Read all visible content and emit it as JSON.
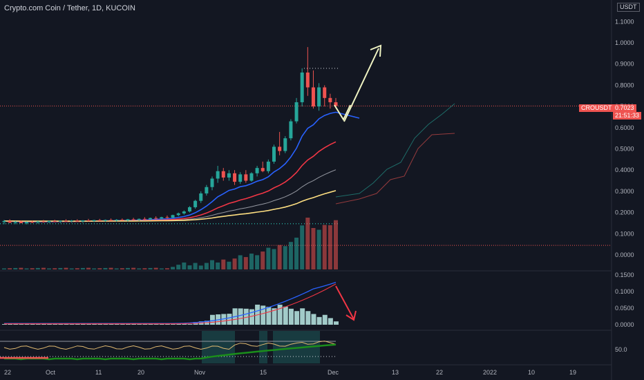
{
  "header": {
    "title": "Crypto.com Coin / Tether, 1D, KUCOIN",
    "unit": "USDT"
  },
  "price_tag": {
    "symbol": "CROUSDT",
    "price": "0.7023",
    "countdown": "21:51:33"
  },
  "colors": {
    "bg": "#131722",
    "up": "#26a69a",
    "down": "#ef5350",
    "grid": "#1e222d",
    "ema_fast": "#2962ff",
    "ema_mid": "#f23645",
    "ema_slow": "#9598a1",
    "ema_long": "#ffe082",
    "arrow_up": "#f0f4c3",
    "arrow_down": "#f23645"
  },
  "chart_data": [
    {
      "type": "candlestick",
      "panel": "price",
      "y_ticks": [
        "1.1000",
        "1.0000",
        "0.9000",
        "0.8000",
        "0.7000",
        "0.6000",
        "0.5000",
        "0.4000",
        "0.3000",
        "0.2000",
        "0.1000",
        "0.0000"
      ],
      "x_ticks": [
        "22",
        "Oct",
        "11",
        "20",
        "Nov",
        "15",
        "Dec",
        "13",
        "22",
        "2022",
        "10",
        "19"
      ],
      "ylim": [
        0,
        1.1
      ],
      "series": [
        {
          "name": "CROUSDT",
          "ohlc_desc": "flat ~0.15 through October, rally in November to high ~0.98, last close 0.7023"
        }
      ],
      "candles": [
        [
          0.155,
          0.165,
          0.145,
          0.16
        ],
        [
          0.16,
          0.168,
          0.15,
          0.152
        ],
        [
          0.152,
          0.16,
          0.145,
          0.157
        ],
        [
          0.157,
          0.163,
          0.15,
          0.15
        ],
        [
          0.15,
          0.158,
          0.144,
          0.156
        ],
        [
          0.156,
          0.162,
          0.15,
          0.153
        ],
        [
          0.153,
          0.16,
          0.147,
          0.158
        ],
        [
          0.158,
          0.165,
          0.152,
          0.155
        ],
        [
          0.155,
          0.162,
          0.15,
          0.16
        ],
        [
          0.16,
          0.166,
          0.154,
          0.157
        ],
        [
          0.157,
          0.163,
          0.151,
          0.161
        ],
        [
          0.161,
          0.168,
          0.156,
          0.159
        ],
        [
          0.159,
          0.165,
          0.153,
          0.162
        ],
        [
          0.162,
          0.168,
          0.157,
          0.158
        ],
        [
          0.158,
          0.164,
          0.152,
          0.163
        ],
        [
          0.163,
          0.17,
          0.158,
          0.16
        ],
        [
          0.16,
          0.166,
          0.155,
          0.164
        ],
        [
          0.164,
          0.17,
          0.159,
          0.161
        ],
        [
          0.161,
          0.167,
          0.156,
          0.165
        ],
        [
          0.165,
          0.172,
          0.16,
          0.162
        ],
        [
          0.162,
          0.169,
          0.157,
          0.166
        ],
        [
          0.166,
          0.172,
          0.161,
          0.163
        ],
        [
          0.163,
          0.17,
          0.158,
          0.168
        ],
        [
          0.168,
          0.175,
          0.162,
          0.165
        ],
        [
          0.165,
          0.172,
          0.16,
          0.17
        ],
        [
          0.17,
          0.178,
          0.165,
          0.168
        ],
        [
          0.168,
          0.176,
          0.163,
          0.174
        ],
        [
          0.174,
          0.182,
          0.168,
          0.172
        ],
        [
          0.172,
          0.18,
          0.166,
          0.178
        ],
        [
          0.178,
          0.186,
          0.172,
          0.176
        ],
        [
          0.176,
          0.19,
          0.172,
          0.188
        ],
        [
          0.188,
          0.2,
          0.182,
          0.196
        ],
        [
          0.196,
          0.21,
          0.19,
          0.205
        ],
        [
          0.205,
          0.23,
          0.2,
          0.225
        ],
        [
          0.225,
          0.26,
          0.218,
          0.255
        ],
        [
          0.255,
          0.3,
          0.245,
          0.29
        ],
        [
          0.29,
          0.33,
          0.28,
          0.32
        ],
        [
          0.32,
          0.37,
          0.305,
          0.36
        ],
        [
          0.36,
          0.42,
          0.34,
          0.395
        ],
        [
          0.395,
          0.41,
          0.35,
          0.365
        ],
        [
          0.365,
          0.4,
          0.35,
          0.385
        ],
        [
          0.385,
          0.4,
          0.33,
          0.345
        ],
        [
          0.345,
          0.39,
          0.335,
          0.38
        ],
        [
          0.38,
          0.4,
          0.34,
          0.35
        ],
        [
          0.35,
          0.39,
          0.345,
          0.385
        ],
        [
          0.385,
          0.42,
          0.37,
          0.41
        ],
        [
          0.41,
          0.44,
          0.39,
          0.395
        ],
        [
          0.395,
          0.45,
          0.385,
          0.44
        ],
        [
          0.44,
          0.52,
          0.43,
          0.51
        ],
        [
          0.51,
          0.58,
          0.47,
          0.49
        ],
        [
          0.49,
          0.56,
          0.48,
          0.55
        ],
        [
          0.55,
          0.64,
          0.54,
          0.63
        ],
        [
          0.63,
          0.74,
          0.62,
          0.72
        ],
        [
          0.72,
          0.88,
          0.7,
          0.86
        ],
        [
          0.86,
          0.98,
          0.75,
          0.79
        ],
        [
          0.79,
          0.87,
          0.69,
          0.7
        ],
        [
          0.7,
          0.81,
          0.68,
          0.79
        ],
        [
          0.79,
          0.8,
          0.7,
          0.74
        ],
        [
          0.74,
          0.76,
          0.69,
          0.72
        ],
        [
          0.72,
          0.74,
          0.69,
          0.7023
        ]
      ],
      "overlays": [
        {
          "name": "ema_fast",
          "values_desc": "rises to ~0.64"
        },
        {
          "name": "ema_mid",
          "values_desc": "rises to ~0.46"
        },
        {
          "name": "ema_slow",
          "values_desc": "rises to ~0.33"
        },
        {
          "name": "ema_long",
          "values_desc": "rises to ~0.25"
        }
      ],
      "levels": [
        0.1475,
        0.045
      ],
      "resistance_level": 0.88
    },
    {
      "type": "bar",
      "panel": "volume",
      "values_desc": "relative volume, peaking in late November"
    },
    {
      "type": "line",
      "panel": "oscillator",
      "y_ticks": [
        "0.1500",
        "0.1000",
        "0.0500",
        "0.0000"
      ],
      "ylim": [
        0,
        0.16
      ],
      "series": [
        {
          "name": "fast",
          "peak": 0.145
        },
        {
          "name": "slow",
          "peak": 0.125
        }
      ]
    },
    {
      "type": "line",
      "panel": "rsi",
      "y_ticks": [
        "50.0"
      ]
    }
  ]
}
